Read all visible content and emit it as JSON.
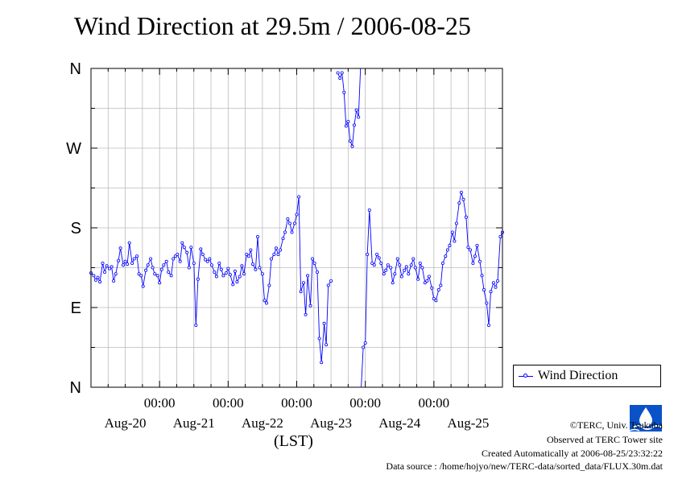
{
  "title": "Wind Direction at 29.5m / 2006-08-25",
  "x_unit_label": "(LST)",
  "legend_label": "Wind Direction",
  "footer": {
    "copyright": "©TERC, Univ. Tsukuba",
    "observed": "Observed at TERC Tower site",
    "created": "Created Automatically at 2006-08-25/23:32:22",
    "source": "Data source : /home/hojyo/new/TERC-data/sorted_data/FLUX.30m.dat"
  },
  "colors": {
    "series": "#0000ff",
    "grid": "#bbbbbb",
    "axis": "#000000"
  },
  "chart_data": {
    "type": "line",
    "title": "Wind Direction at 29.5m / 2006-08-25",
    "xlabel": "(LST)",
    "ylabel": "",
    "x_unit": "days since 2006-08-19 00:00 LST",
    "xlim": [
      0.0,
      6.0
    ],
    "ylim": [
      0,
      360
    ],
    "y_ticks": [
      {
        "value": 0,
        "label": "N"
      },
      {
        "value": 90,
        "label": "E"
      },
      {
        "value": 180,
        "label": "S"
      },
      {
        "value": 270,
        "label": "W"
      },
      {
        "value": 360,
        "label": "N"
      }
    ],
    "x_time_ticks": [
      {
        "day": 1,
        "label": "00:00"
      },
      {
        "day": 2,
        "label": "00:00"
      },
      {
        "day": 3,
        "label": "00:00"
      },
      {
        "day": 4,
        "label": "00:00"
      },
      {
        "day": 5,
        "label": "00:00"
      }
    ],
    "x_date_ticks": [
      {
        "day": 0.5,
        "label": "Aug-20"
      },
      {
        "day": 1.5,
        "label": "Aug-21"
      },
      {
        "day": 2.5,
        "label": "Aug-22"
      },
      {
        "day": 3.5,
        "label": "Aug-23"
      },
      {
        "day": 4.5,
        "label": "Aug-24"
      },
      {
        "day": 5.5,
        "label": "Aug-25"
      }
    ],
    "grid": true,
    "legend_position": "right",
    "series": [
      {
        "name": "Wind Direction",
        "segments": [
          [
            [
              0.0,
              129
            ],
            [
              0.04,
              126
            ],
            [
              0.07,
              121
            ],
            [
              0.1,
              124
            ],
            [
              0.13,
              119
            ],
            [
              0.17,
              140
            ],
            [
              0.2,
              130
            ],
            [
              0.23,
              137
            ],
            [
              0.27,
              134
            ],
            [
              0.3,
              136
            ],
            [
              0.33,
              120
            ],
            [
              0.36,
              128
            ],
            [
              0.4,
              143
            ],
            [
              0.43,
              157
            ],
            [
              0.47,
              138
            ],
            [
              0.5,
              142
            ],
            [
              0.53,
              139
            ],
            [
              0.56,
              163
            ],
            [
              0.6,
              140
            ],
            [
              0.63,
              145
            ],
            [
              0.67,
              148
            ],
            [
              0.7,
              128
            ],
            [
              0.73,
              126
            ],
            [
              0.76,
              114
            ],
            [
              0.8,
              132
            ],
            [
              0.83,
              138
            ],
            [
              0.87,
              145
            ],
            [
              0.9,
              135
            ],
            [
              0.93,
              128
            ],
            [
              0.97,
              126
            ],
            [
              1.0,
              118
            ],
            [
              1.03,
              133
            ],
            [
              1.06,
              138
            ],
            [
              1.1,
              142
            ],
            [
              1.13,
              130
            ],
            [
              1.17,
              126
            ],
            [
              1.2,
              145
            ],
            [
              1.23,
              148
            ],
            [
              1.26,
              150
            ],
            [
              1.3,
              142
            ],
            [
              1.33,
              163
            ],
            [
              1.36,
              158
            ],
            [
              1.4,
              152
            ],
            [
              1.43,
              135
            ],
            [
              1.46,
              158
            ],
            [
              1.5,
              140
            ],
            [
              1.53,
              70
            ],
            [
              1.56,
              122
            ],
            [
              1.6,
              156
            ],
            [
              1.63,
              150
            ],
            [
              1.67,
              144
            ],
            [
              1.7,
              142
            ],
            [
              1.73,
              145
            ],
            [
              1.76,
              138
            ],
            [
              1.8,
              130
            ],
            [
              1.83,
              125
            ],
            [
              1.87,
              140
            ],
            [
              1.9,
              133
            ],
            [
              1.93,
              126
            ],
            [
              1.97,
              129
            ],
            [
              2.0,
              134
            ],
            [
              2.03,
              127
            ],
            [
              2.07,
              116
            ],
            [
              2.1,
              131
            ],
            [
              2.13,
              119
            ],
            [
              2.17,
              125
            ],
            [
              2.2,
              137
            ],
            [
              2.23,
              128
            ],
            [
              2.27,
              150
            ],
            [
              2.3,
              148
            ],
            [
              2.33,
              155
            ],
            [
              2.36,
              139
            ],
            [
              2.4,
              133
            ],
            [
              2.43,
              170
            ],
            [
              2.46,
              135
            ],
            [
              2.5,
              128
            ],
            [
              2.53,
              98
            ],
            [
              2.56,
              95
            ],
            [
              2.6,
              115
            ],
            [
              2.63,
              145
            ],
            [
              2.67,
              150
            ],
            [
              2.7,
              157
            ],
            [
              2.73,
              150
            ],
            [
              2.76,
              155
            ],
            [
              2.8,
              168
            ],
            [
              2.83,
              175
            ],
            [
              2.87,
              190
            ],
            [
              2.9,
              185
            ],
            [
              2.93,
              175
            ],
            [
              2.97,
              185
            ],
            [
              3.0,
              195
            ],
            [
              3.03,
              215
            ],
            [
              3.06,
              108
            ],
            [
              3.1,
              118
            ],
            [
              3.13,
              82
            ],
            [
              3.16,
              126
            ],
            [
              3.2,
              92
            ],
            [
              3.23,
              145
            ],
            [
              3.26,
              140
            ],
            [
              3.3,
              130
            ],
            [
              3.33,
              55
            ],
            [
              3.36,
              28
            ],
            [
              3.4,
              72
            ],
            [
              3.43,
              48
            ],
            [
              3.46,
              115
            ],
            [
              3.5,
              120
            ]
          ],
          [
            [
              3.6,
              355
            ],
            [
              3.63,
              349
            ],
            [
              3.66,
              355
            ],
            [
              3.69,
              333
            ],
            [
              3.72,
              295
            ],
            [
              3.75,
              300
            ],
            [
              3.78,
              278
            ],
            [
              3.81,
              272
            ],
            [
              3.84,
              296
            ],
            [
              3.87,
              313
            ],
            [
              3.9,
              305
            ],
            [
              3.93,
              360
            ]
          ],
          [
            [
              3.94,
              0
            ],
            [
              3.97,
              45
            ],
            [
              4.0,
              50
            ],
            [
              4.03,
              150
            ],
            [
              4.06,
              200
            ],
            [
              4.1,
              140
            ],
            [
              4.13,
              138
            ],
            [
              4.17,
              150
            ],
            [
              4.2,
              146
            ],
            [
              4.23,
              140
            ],
            [
              4.27,
              128
            ],
            [
              4.3,
              132
            ],
            [
              4.33,
              138
            ],
            [
              4.37,
              135
            ],
            [
              4.4,
              118
            ],
            [
              4.43,
              128
            ],
            [
              4.47,
              145
            ],
            [
              4.5,
              138
            ],
            [
              4.53,
              125
            ],
            [
              4.57,
              132
            ],
            [
              4.6,
              136
            ],
            [
              4.63,
              128
            ],
            [
              4.67,
              138
            ],
            [
              4.7,
              145
            ],
            [
              4.73,
              135
            ],
            [
              4.77,
              122
            ],
            [
              4.8,
              140
            ],
            [
              4.83,
              135
            ],
            [
              4.87,
              118
            ],
            [
              4.9,
              120
            ],
            [
              4.93,
              125
            ],
            [
              4.97,
              112
            ],
            [
              5.0,
              100
            ],
            [
              5.03,
              98
            ],
            [
              5.07,
              110
            ],
            [
              5.1,
              115
            ],
            [
              5.13,
              140
            ],
            [
              5.17,
              148
            ],
            [
              5.2,
              155
            ],
            [
              5.23,
              160
            ],
            [
              5.27,
              175
            ],
            [
              5.3,
              165
            ],
            [
              5.33,
              185
            ],
            [
              5.37,
              208
            ],
            [
              5.4,
              220
            ],
            [
              5.43,
              212
            ],
            [
              5.47,
              192
            ],
            [
              5.5,
              158
            ],
            [
              5.53,
              155
            ],
            [
              5.57,
              140
            ],
            [
              5.6,
              148
            ],
            [
              5.63,
              160
            ],
            [
              5.67,
              142
            ],
            [
              5.7,
              126
            ],
            [
              5.73,
              110
            ],
            [
              5.77,
              95
            ],
            [
              5.8,
              70
            ],
            [
              5.83,
              108
            ],
            [
              5.87,
              118
            ],
            [
              5.9,
              113
            ],
            [
              5.93,
              120
            ],
            [
              5.97,
              170
            ],
            [
              6.0,
              175
            ]
          ]
        ],
        "note": "Points wrap between 0 and 360 (N)."
      }
    ]
  }
}
